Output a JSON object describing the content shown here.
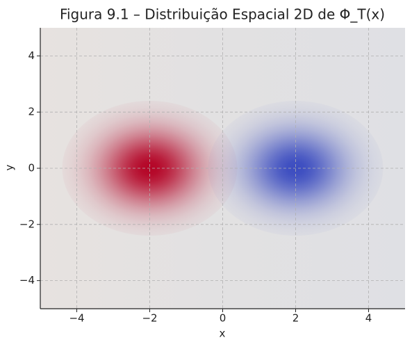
{
  "chart_data": {
    "type": "heatmap",
    "title": "Figura 9.1 – Distribuição Espacial 2D de Φ_T(x)",
    "x_label": "x",
    "y_label": "y",
    "xlim": [
      -5,
      5
    ],
    "ylim": [
      -5,
      5
    ],
    "xticks": [
      {
        "value": -4,
        "label": "−4"
      },
      {
        "value": -2,
        "label": "−2"
      },
      0,
      2,
      4
    ],
    "yticks": [
      {
        "value": -4,
        "label": "−4"
      },
      {
        "value": -2,
        "label": "−2"
      },
      0,
      2,
      4
    ],
    "grid": true,
    "sources": [
      {
        "x": -2,
        "y": 0,
        "amplitude": 1,
        "sigma": 0.8,
        "color": "#b40426"
      },
      {
        "x": 2,
        "y": 0,
        "amplitude": -1,
        "sigma": 0.8,
        "color": "#3b4cc0"
      }
    ]
  }
}
